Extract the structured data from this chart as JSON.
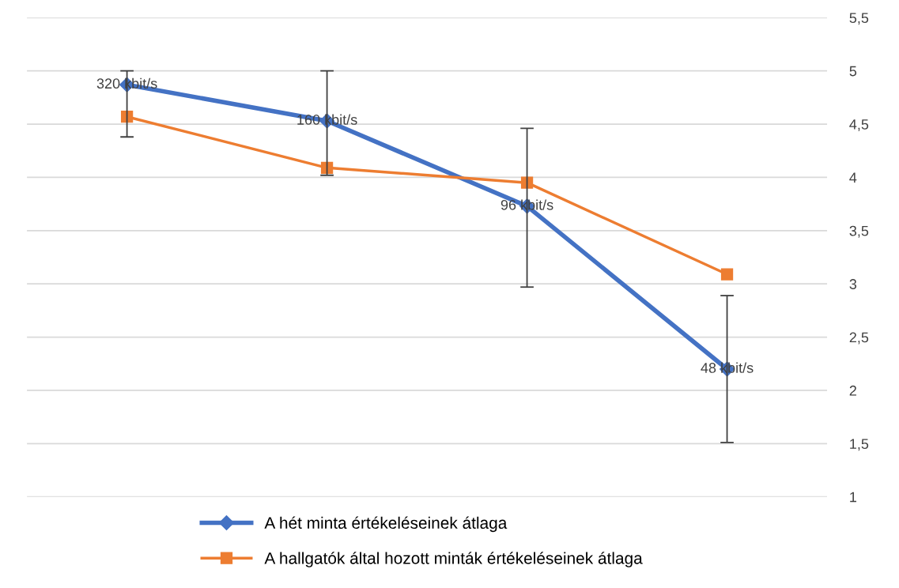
{
  "chart_data": {
    "type": "line",
    "categories": [
      "320 kbit/s",
      "160 kbit/s",
      "96 kbit/s",
      "48 kbit/s"
    ],
    "series": [
      {
        "name": "A hét minta értékeléseinek átlaga",
        "color": "#4472c4",
        "marker": "diamond",
        "values": [
          4.87,
          4.53,
          3.73,
          2.2
        ],
        "errors": [
          [
            4.38,
            5.0
          ],
          [
            4.02,
            5.0
          ],
          [
            2.97,
            4.46
          ],
          [
            1.51,
            2.89
          ]
        ]
      },
      {
        "name": "A hallgatók által hozott minták értékeléseinek átlaga",
        "color": "#ed7d31",
        "marker": "square",
        "values": [
          4.57,
          4.09,
          3.95,
          3.09
        ]
      }
    ],
    "ylim": [
      1,
      5.5
    ],
    "yticks": [
      1,
      {
        "value": 1.5,
        "label": "1,5"
      },
      2,
      {
        "value": 2.5,
        "label": "2,5"
      },
      3,
      {
        "value": 3.5,
        "label": "3,5"
      },
      4,
      {
        "value": 4.5,
        "label": "4,5"
      },
      5,
      {
        "value": 5.5,
        "label": "5,5"
      }
    ],
    "grid": "y",
    "legend": "bottom",
    "line_style": "solid"
  }
}
